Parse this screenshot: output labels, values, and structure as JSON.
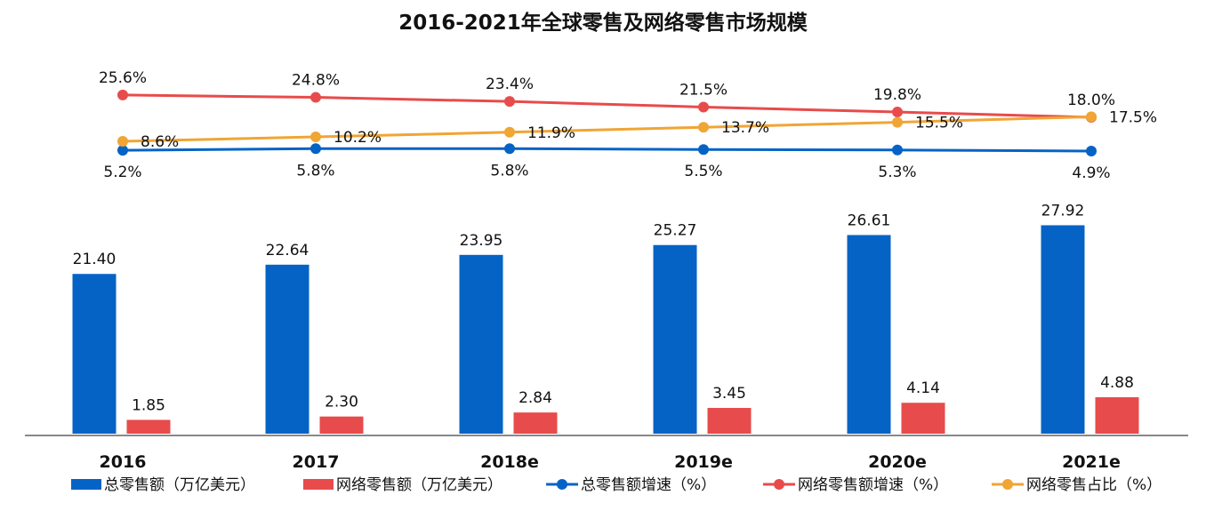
{
  "chart_data": {
    "type": "bar",
    "title": "2016-2021年全球零售及网络零售市场规模",
    "categories": [
      "2016",
      "2017",
      "2018e",
      "2019e",
      "2020e",
      "2021e"
    ],
    "series": [
      {
        "name": "总零售额（万亿美元）",
        "kind": "bar",
        "color": "#0663C6",
        "values": [
          21.4,
          22.64,
          23.95,
          25.27,
          26.61,
          27.92
        ],
        "labels": [
          "21.40",
          "22.64",
          "23.95",
          "25.27",
          "26.61",
          "27.92"
        ]
      },
      {
        "name": "网络零售额（万亿美元）",
        "kind": "bar",
        "color": "#E84B4B",
        "values": [
          1.85,
          2.3,
          2.84,
          3.45,
          4.14,
          4.88
        ],
        "labels": [
          "1.85",
          "2.30",
          "2.84",
          "3.45",
          "4.14",
          "4.88"
        ]
      },
      {
        "name": "总零售额增速（%）",
        "kind": "line",
        "color": "#0663C6",
        "values": [
          5.2,
          5.8,
          5.8,
          5.5,
          5.3,
          4.9
        ],
        "labels": [
          "5.2%",
          "5.8%",
          "5.8%",
          "5.5%",
          "5.3%",
          "4.9%"
        ]
      },
      {
        "name": "网络零售额增速（%）",
        "kind": "line",
        "color": "#E84B4B",
        "values": [
          25.6,
          24.8,
          23.4,
          21.5,
          19.8,
          18.0
        ],
        "labels": [
          "25.6%",
          "24.8%",
          "23.4%",
          "21.5%",
          "19.8%",
          "18.0%"
        ]
      },
      {
        "name": "网络零售占比（%）",
        "kind": "line",
        "color": "#F0A534",
        "values": [
          8.6,
          10.2,
          11.9,
          13.7,
          15.5,
          17.5
        ],
        "labels": [
          "8.6%",
          "10.2%",
          "11.9%",
          "13.7%",
          "15.5%",
          "17.5%"
        ]
      }
    ],
    "legend_position": "bottom",
    "grid": false
  }
}
